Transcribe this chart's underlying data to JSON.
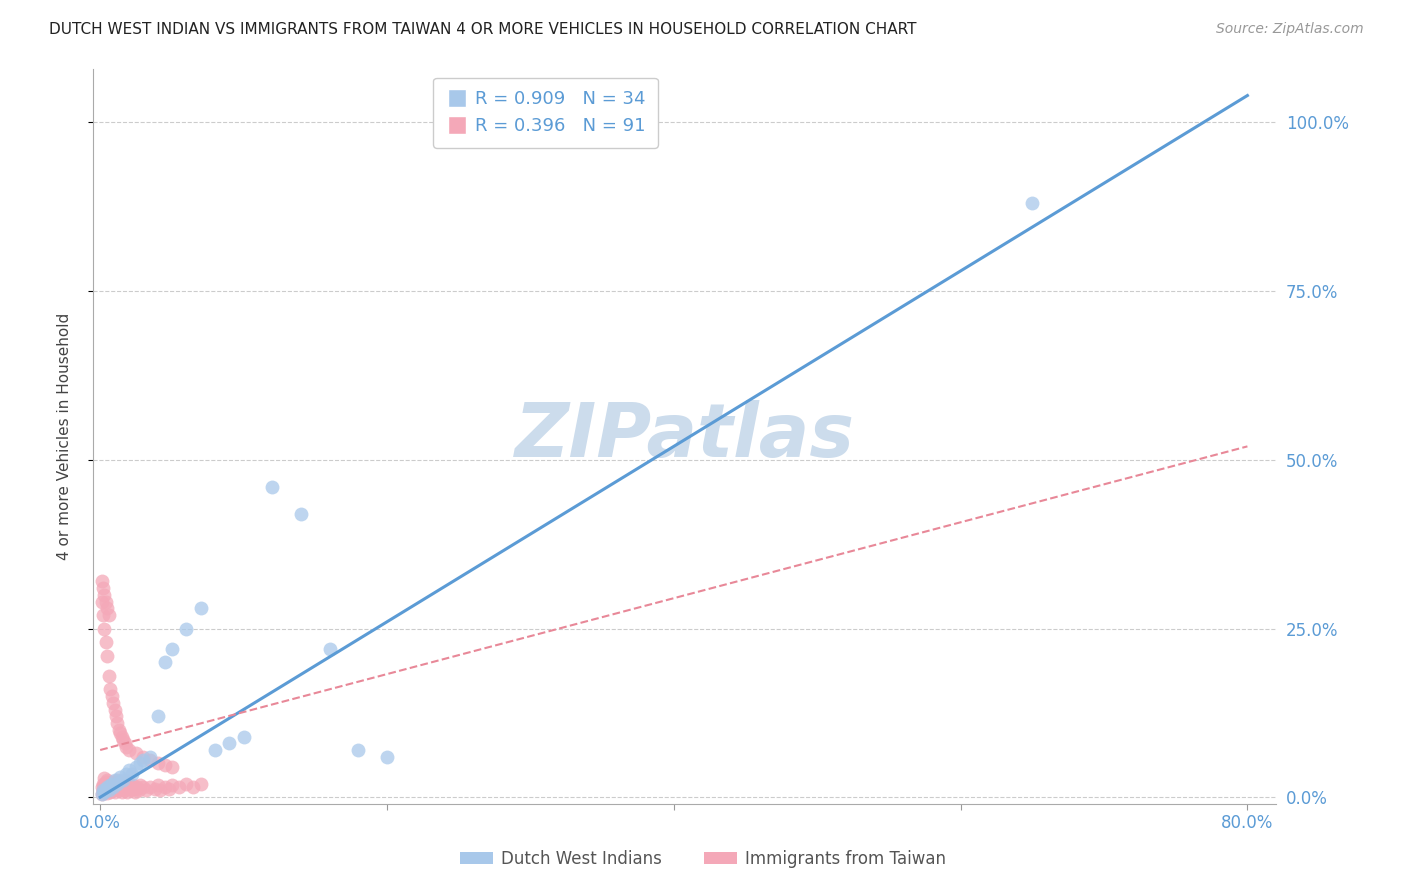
{
  "title": "DUTCH WEST INDIAN VS IMMIGRANTS FROM TAIWAN 4 OR MORE VEHICLES IN HOUSEHOLD CORRELATION CHART",
  "source": "Source: ZipAtlas.com",
  "ylabel": "4 or more Vehicles in Household",
  "x_ticks": [
    "0.0%",
    "",
    "",
    "",
    "80.0%"
  ],
  "x_tick_vals": [
    0.0,
    0.2,
    0.4,
    0.6,
    0.8
  ],
  "y_ticks_right": [
    "0.0%",
    "25.0%",
    "50.0%",
    "75.0%",
    "100.0%"
  ],
  "y_tick_vals": [
    0.0,
    0.25,
    0.5,
    0.75,
    1.0
  ],
  "xlim": [
    -0.005,
    0.82
  ],
  "ylim": [
    -0.01,
    1.08
  ],
  "legend1_R": "0.909",
  "legend1_N": "34",
  "legend2_R": "0.396",
  "legend2_N": "91",
  "blue_color": "#a8c8ea",
  "pink_color": "#f4a8b8",
  "line_blue": "#5b9bd5",
  "line_pink": "#e88898",
  "tick_color": "#5b9bd5",
  "watermark_color": "#ccdcec",
  "blue_scatter_x": [
    0.001,
    0.002,
    0.003,
    0.004,
    0.005,
    0.006,
    0.007,
    0.008,
    0.009,
    0.01,
    0.012,
    0.014,
    0.016,
    0.018,
    0.02,
    0.022,
    0.025,
    0.028,
    0.03,
    0.035,
    0.04,
    0.045,
    0.05,
    0.06,
    0.07,
    0.08,
    0.09,
    0.1,
    0.12,
    0.14,
    0.16,
    0.18,
    0.2,
    0.65
  ],
  "blue_scatter_y": [
    0.005,
    0.01,
    0.008,
    0.012,
    0.015,
    0.01,
    0.018,
    0.02,
    0.015,
    0.025,
    0.02,
    0.03,
    0.025,
    0.035,
    0.04,
    0.035,
    0.045,
    0.05,
    0.055,
    0.06,
    0.12,
    0.2,
    0.22,
    0.25,
    0.28,
    0.07,
    0.08,
    0.09,
    0.46,
    0.42,
    0.22,
    0.07,
    0.06,
    0.88
  ],
  "pink_scatter_x": [
    0.001,
    0.001,
    0.002,
    0.002,
    0.003,
    0.003,
    0.003,
    0.004,
    0.004,
    0.005,
    0.005,
    0.005,
    0.006,
    0.006,
    0.007,
    0.007,
    0.008,
    0.008,
    0.009,
    0.009,
    0.01,
    0.01,
    0.011,
    0.011,
    0.012,
    0.012,
    0.013,
    0.013,
    0.014,
    0.015,
    0.015,
    0.016,
    0.016,
    0.017,
    0.018,
    0.018,
    0.019,
    0.02,
    0.02,
    0.021,
    0.022,
    0.023,
    0.024,
    0.025,
    0.026,
    0.027,
    0.028,
    0.03,
    0.032,
    0.035,
    0.038,
    0.04,
    0.042,
    0.045,
    0.048,
    0.05,
    0.055,
    0.06,
    0.065,
    0.07,
    0.001,
    0.002,
    0.003,
    0.004,
    0.005,
    0.006,
    0.007,
    0.008,
    0.009,
    0.01,
    0.011,
    0.012,
    0.013,
    0.014,
    0.015,
    0.016,
    0.017,
    0.018,
    0.02,
    0.025,
    0.03,
    0.035,
    0.04,
    0.045,
    0.05,
    0.001,
    0.002,
    0.003,
    0.004,
    0.005,
    0.006
  ],
  "pink_scatter_y": [
    0.005,
    0.015,
    0.01,
    0.02,
    0.008,
    0.018,
    0.028,
    0.012,
    0.022,
    0.006,
    0.016,
    0.026,
    0.01,
    0.02,
    0.008,
    0.018,
    0.012,
    0.022,
    0.01,
    0.02,
    0.008,
    0.018,
    0.012,
    0.022,
    0.015,
    0.025,
    0.01,
    0.02,
    0.015,
    0.008,
    0.018,
    0.012,
    0.022,
    0.01,
    0.015,
    0.025,
    0.008,
    0.012,
    0.02,
    0.015,
    0.01,
    0.018,
    0.008,
    0.012,
    0.015,
    0.01,
    0.018,
    0.015,
    0.01,
    0.015,
    0.012,
    0.018,
    0.01,
    0.015,
    0.012,
    0.018,
    0.015,
    0.02,
    0.015,
    0.02,
    0.29,
    0.27,
    0.25,
    0.23,
    0.21,
    0.18,
    0.16,
    0.15,
    0.14,
    0.13,
    0.12,
    0.11,
    0.1,
    0.095,
    0.09,
    0.085,
    0.08,
    0.075,
    0.07,
    0.065,
    0.06,
    0.055,
    0.05,
    0.048,
    0.045,
    0.32,
    0.31,
    0.3,
    0.29,
    0.28,
    0.27
  ],
  "blue_line_x": [
    0.0,
    0.8
  ],
  "blue_line_y": [
    0.0,
    1.04
  ],
  "pink_line_x": [
    0.0,
    0.8
  ],
  "pink_line_y": [
    0.07,
    0.52
  ]
}
